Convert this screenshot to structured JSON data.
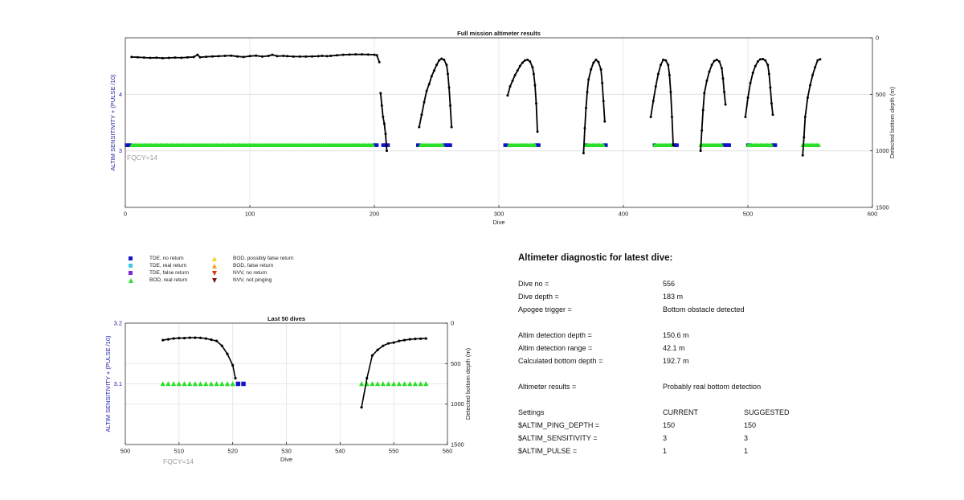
{
  "chart_data": [
    {
      "type": "scatter",
      "title": "Full mission altimeter results",
      "xlabel": "Dive",
      "ylabel": "ALTIM SENSITIVITY + (PULSE /10)",
      "y2label": "Detected bottom depth (m)",
      "annotation": "FQCY=14",
      "xlim": [
        0,
        600
      ],
      "ylim": [
        2,
        5
      ],
      "y2lim": [
        1500,
        0
      ],
      "x_ticks": [
        "0",
        "100",
        "200",
        "300",
        "400",
        "500",
        "600"
      ],
      "y_ticks": [
        "3",
        "4"
      ],
      "y2_ticks": [
        "0",
        "500",
        "1000",
        "1500"
      ],
      "grid": true,
      "series": [
        {
          "name": "Detected bottom depth",
          "axis": "right",
          "segments": [
            [
              [
                5,
                170
              ],
              [
                10,
                172
              ],
              [
                15,
                175
              ],
              [
                20,
                178
              ],
              [
                25,
                176
              ],
              [
                30,
                180
              ],
              [
                35,
                178
              ],
              [
                40,
                175
              ],
              [
                45,
                177
              ],
              [
                50,
                173
              ],
              [
                55,
                170
              ],
              [
                58,
                150
              ],
              [
                60,
                172
              ],
              [
                65,
                168
              ],
              [
                70,
                165
              ],
              [
                75,
                163
              ],
              [
                80,
                160
              ],
              [
                85,
                158
              ],
              [
                90,
                165
              ],
              [
                95,
                170
              ],
              [
                100,
                162
              ],
              [
                105,
                158
              ],
              [
                110,
                166
              ],
              [
                115,
                160
              ],
              [
                118,
                150
              ],
              [
                122,
                163
              ],
              [
                127,
                160
              ],
              [
                130,
                163
              ],
              [
                135,
                166
              ],
              [
                140,
                166
              ],
              [
                145,
                166
              ],
              [
                150,
                165
              ],
              [
                155,
                163
              ],
              [
                158,
                160
              ],
              [
                162,
                163
              ],
              [
                165,
                160
              ],
              [
                170,
                155
              ],
              [
                175,
                150
              ],
              [
                180,
                148
              ],
              [
                185,
                147
              ],
              [
                190,
                147
              ],
              [
                195,
                148
              ],
              [
                200,
                150
              ],
              [
                202,
                155
              ],
              [
                204,
                215
              ]
            ],
            [
              [
                205,
                490
              ],
              [
                206,
                600
              ],
              [
                207,
                700
              ],
              [
                208,
                760
              ],
              [
                209,
                850
              ],
              [
                210,
                1000
              ]
            ],
            [
              [
                236,
                790
              ],
              [
                238,
                680
              ],
              [
                240,
                570
              ],
              [
                242,
                470
              ],
              [
                244,
                410
              ],
              [
                246,
                340
              ],
              [
                248,
                290
              ],
              [
                250,
                240
              ],
              [
                252,
                200
              ],
              [
                254,
                185
              ],
              [
                256,
                195
              ],
              [
                258,
                240
              ],
              [
                259,
                320
              ],
              [
                260,
                440
              ],
              [
                261,
                600
              ],
              [
                262,
                790
              ]
            ],
            [
              [
                307,
                510
              ],
              [
                309,
                430
              ],
              [
                311,
                380
              ],
              [
                313,
                330
              ],
              [
                315,
                290
              ],
              [
                317,
                250
              ],
              [
                319,
                220
              ],
              [
                321,
                200
              ],
              [
                323,
                195
              ],
              [
                325,
                210
              ],
              [
                327,
                260
              ],
              [
                328,
                320
              ],
              [
                329,
                420
              ],
              [
                330,
                580
              ],
              [
                331,
                830
              ]
            ],
            [
              [
                368,
                1020
              ],
              [
                369,
                800
              ],
              [
                370,
                620
              ],
              [
                371,
                480
              ],
              [
                372,
                370
              ],
              [
                374,
                280
              ],
              [
                376,
                220
              ],
              [
                378,
                195
              ],
              [
                380,
                215
              ],
              [
                382,
                280
              ],
              [
                383,
                400
              ],
              [
                384,
                560
              ],
              [
                385,
                740
              ]
            ],
            [
              [
                422,
                700
              ],
              [
                424,
                560
              ],
              [
                426,
                430
              ],
              [
                428,
                320
              ],
              [
                430,
                240
              ],
              [
                432,
                195
              ],
              [
                434,
                200
              ],
              [
                436,
                240
              ],
              [
                437,
                330
              ],
              [
                438,
                480
              ],
              [
                439,
                700
              ],
              [
                440,
                950
              ]
            ],
            [
              [
                462,
                1000
              ],
              [
                463,
                820
              ],
              [
                464,
                640
              ],
              [
                465,
                490
              ],
              [
                467,
                380
              ],
              [
                469,
                300
              ],
              [
                471,
                240
              ],
              [
                473,
                205
              ],
              [
                475,
                195
              ],
              [
                477,
                210
              ],
              [
                479,
                270
              ],
              [
                480,
                360
              ],
              [
                481,
                480
              ],
              [
                482,
                590
              ]
            ],
            [
              [
                498,
                700
              ],
              [
                500,
                530
              ],
              [
                502,
                400
              ],
              [
                504,
                310
              ],
              [
                506,
                250
              ],
              [
                508,
                210
              ],
              [
                510,
                190
              ],
              [
                512,
                188
              ],
              [
                514,
                200
              ],
              [
                516,
                240
              ],
              [
                517,
                320
              ],
              [
                518,
                440
              ],
              [
                519,
                580
              ],
              [
                520,
                680
              ]
            ],
            [
              [
                544,
                1040
              ],
              [
                545,
                880
              ],
              [
                546,
                700
              ],
              [
                548,
                530
              ],
              [
                550,
                420
              ],
              [
                552,
                330
              ],
              [
                554,
                260
              ],
              [
                556,
                200
              ],
              [
                558,
                190
              ]
            ]
          ]
        },
        {
          "name": "TDE, no return",
          "axis": "left",
          "y": 3.1,
          "x": [
            1,
            2,
            3,
            4,
            200,
            201,
            202,
            207,
            208,
            209,
            210,
            211,
            235,
            236,
            256,
            257,
            258,
            259,
            260,
            261,
            305,
            306,
            330,
            331,
            332,
            370,
            385,
            386,
            425,
            440,
            441,
            442,
            443,
            480,
            481,
            482,
            483,
            484,
            485,
            500,
            501,
            520,
            521,
            522
          ]
        },
        {
          "name": "BOD, real return",
          "axis": "left",
          "y": 3.1,
          "ranges": [
            [
              5,
              199
            ],
            [
              237,
              255
            ],
            [
              308,
              329
            ],
            [
              370,
              384
            ],
            [
              425,
              439
            ],
            [
              462,
              479
            ],
            [
              500,
              519
            ],
            [
              544,
              557
            ]
          ]
        }
      ]
    },
    {
      "type": "scatter",
      "title": "Last 50 dives",
      "xlabel": "Dive",
      "ylabel": "ALTIM SENSITIVITY + (PULSE /10)",
      "y2label": "Detected bottom depth (m)",
      "annotation": "FQCY=14",
      "xlim": [
        500,
        560
      ],
      "ylim": [
        3.0,
        3.2
      ],
      "y2lim": [
        1500,
        0
      ],
      "x_ticks": [
        "500",
        "510",
        "520",
        "530",
        "540",
        "550",
        "560"
      ],
      "y_ticks": [
        "3.1",
        "3.2"
      ],
      "y2_ticks": [
        "0",
        "500",
        "1000",
        "1500"
      ],
      "grid": true,
      "series": [
        {
          "name": "Detected bottom depth",
          "axis": "right",
          "segments": [
            [
              [
                507,
                210
              ],
              [
                508,
                200
              ],
              [
                509,
                190
              ],
              [
                510,
                185
              ],
              [
                511,
                185
              ],
              [
                512,
                180
              ],
              [
                513,
                180
              ],
              [
                514,
                182
              ],
              [
                515,
                190
              ],
              [
                516,
                205
              ],
              [
                517,
                220
              ],
              [
                518,
                280
              ],
              [
                519,
                380
              ],
              [
                520,
                520
              ],
              [
                520.5,
                680
              ]
            ],
            [
              [
                544,
                1040
              ],
              [
                545,
                680
              ],
              [
                546,
                400
              ],
              [
                547,
                330
              ],
              [
                548,
                280
              ],
              [
                549,
                250
              ],
              [
                550,
                240
              ],
              [
                551,
                220
              ],
              [
                552,
                210
              ],
              [
                553,
                200
              ],
              [
                554,
                195
              ],
              [
                555,
                192
              ],
              [
                556,
                190
              ]
            ]
          ]
        },
        {
          "name": "BOD, real return",
          "axis": "left",
          "y": 3.1,
          "x": [
            507,
            508,
            509,
            510,
            511,
            512,
            513,
            514,
            515,
            516,
            517,
            518,
            519,
            520,
            544,
            545,
            546,
            547,
            548,
            549,
            550,
            551,
            552,
            553,
            554,
            555,
            556
          ]
        },
        {
          "name": "TDE, no return",
          "axis": "left",
          "y": 3.1,
          "x": [
            521,
            522
          ]
        }
      ]
    }
  ],
  "legend": [
    {
      "label": "TDE, no return",
      "color": "#1414c8",
      "shape": "square"
    },
    {
      "label": "TDE, real return",
      "color": "#3ec8e0",
      "shape": "square"
    },
    {
      "label": "TDE, false return",
      "color": "#7a2ad0",
      "shape": "square"
    },
    {
      "label": "BOD, real return",
      "color": "#28e028",
      "shape": "triangle-up"
    },
    {
      "label": "BOD, possibly false return",
      "color": "#f0d020",
      "shape": "triangle-up"
    },
    {
      "label": "BOD, false return",
      "color": "#f0a020",
      "shape": "triangle-up"
    },
    {
      "label": "NVV, no return",
      "color": "#e03010",
      "shape": "triangle-down"
    },
    {
      "label": "NVV, not pinging",
      "color": "#801010",
      "shape": "triangle-down"
    }
  ],
  "diagnostic": {
    "title": "Altimeter diagnostic for latest dive:",
    "rows": [
      {
        "label": "Dive no =",
        "value": "556"
      },
      {
        "label": "Dive depth =",
        "value": "183 m"
      },
      {
        "label": "Apogee trigger =",
        "value": "Bottom obstacle detected"
      },
      {
        "label": "Altim detection depth =",
        "value": "150.6 m"
      },
      {
        "label": "Altim detection range =",
        "value": "42.1 m"
      },
      {
        "label": "Calculated bottom depth =",
        "value": "192.7 m"
      },
      {
        "label": "Altimeter results =",
        "value": "Probably real bottom detection"
      },
      {
        "label": "Settings",
        "value": "CURRENT",
        "value2": "SUGGESTED"
      },
      {
        "label": "$ALTIM_PING_DEPTH =",
        "value": "150",
        "value2": "150"
      },
      {
        "label": "$ALTIM_SENSITIVITY =",
        "value": "3",
        "value2": "3"
      },
      {
        "label": "$ALTIM_PULSE =",
        "value": "1",
        "value2": "1"
      }
    ]
  },
  "colors": {
    "left_axis": "#1a1aa0",
    "annotation": "#9a9a9a",
    "line": "#000000",
    "grid": "#e2e2e2"
  }
}
